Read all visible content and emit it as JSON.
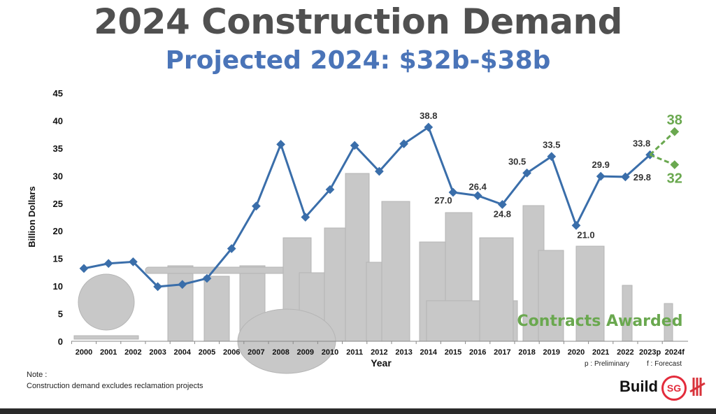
{
  "header": {
    "title": "2024 Construction Demand",
    "subtitle": "Projected 2024: $32b-$38b"
  },
  "chart_data": {
    "type": "line",
    "title": "2024 Construction Demand",
    "subtitle": "Projected 2024: $32b-$38b",
    "xlabel": "Year",
    "ylabel": "Billion Dollars",
    "ylim": [
      0,
      45
    ],
    "yticks": [
      0,
      5,
      10,
      15,
      20,
      25,
      30,
      35,
      40,
      45
    ],
    "grid": false,
    "categories": [
      "2000",
      "2001",
      "2002",
      "2003",
      "2004",
      "2005",
      "2006",
      "2007",
      "2008",
      "2009",
      "2010",
      "2011",
      "2012",
      "2013",
      "2014",
      "2015",
      "2016",
      "2017",
      "2018",
      "2019",
      "2020",
      "2021",
      "2022",
      "2023p",
      "2024f"
    ],
    "series": [
      {
        "name": "Contracts Awarded",
        "color": "#3a6eaa",
        "values": [
          13.2,
          14.1,
          14.4,
          9.9,
          10.3,
          11.4,
          16.8,
          24.5,
          35.7,
          22.5,
          27.5,
          35.5,
          30.8,
          35.8,
          38.8,
          27.0,
          26.4,
          24.8,
          30.5,
          33.5,
          21.0,
          29.9,
          29.8,
          33.8,
          null
        ]
      }
    ],
    "forecast": {
      "color": "#6aa84f",
      "from": "2023p",
      "to": "2024f",
      "high": 38,
      "low": 32,
      "labels": [
        "38",
        "32"
      ]
    },
    "data_labels": [
      {
        "x": "2014",
        "text": "38.8"
      },
      {
        "x": "2015",
        "text": "27.0"
      },
      {
        "x": "2016",
        "text": "26.4"
      },
      {
        "x": "2017",
        "text": "24.8"
      },
      {
        "x": "2018",
        "text": "30.5"
      },
      {
        "x": "2019",
        "text": "33.5"
      },
      {
        "x": "2020",
        "text": "21.0"
      },
      {
        "x": "2021",
        "text": "29.9"
      },
      {
        "x": "2022",
        "text": "29.8"
      },
      {
        "x": "2023p",
        "text": "33.8"
      }
    ],
    "annotation": "Contracts Awarded",
    "footnotes": [
      "p : Preliminary",
      "f : Forecast"
    ]
  },
  "notes": {
    "heading": "Note :",
    "text": "Construction demand excludes reclamation projects"
  },
  "logos": {
    "build": "Build",
    "sg": "SG",
    "bca": "BCA"
  }
}
